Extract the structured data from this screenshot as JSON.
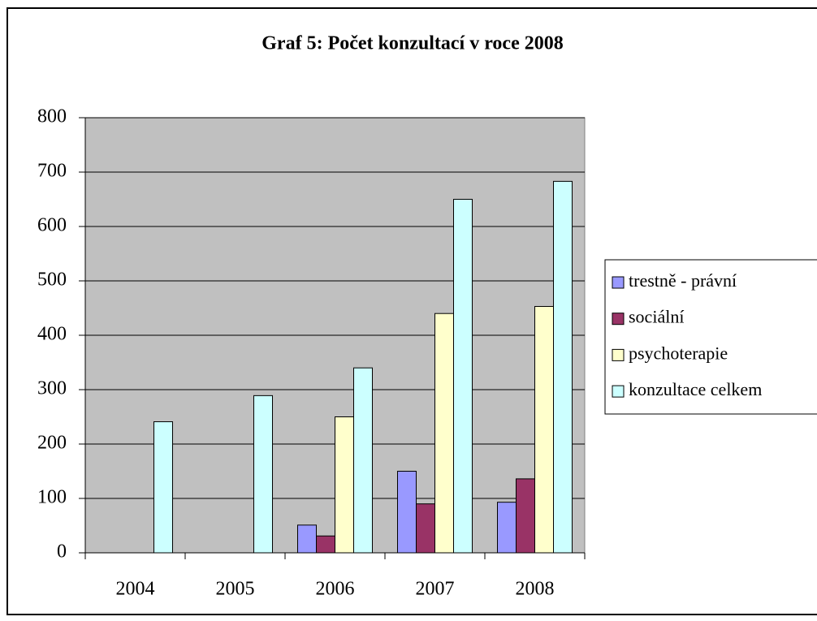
{
  "chart_data": {
    "type": "bar",
    "title": "Graf 5: Počet konzultací v roce 2008",
    "categories": [
      "2004",
      "2005",
      "2006",
      "2007",
      "2008"
    ],
    "series": [
      {
        "name": "trestně - právní",
        "color": "#9999ff",
        "values": [
          null,
          null,
          51,
          150,
          93
        ]
      },
      {
        "name": "sociální",
        "color": "#993366",
        "values": [
          null,
          null,
          31,
          90,
          136
        ]
      },
      {
        "name": "psychoterapie",
        "color": "#ffffcc",
        "values": [
          null,
          null,
          250,
          440,
          453
        ]
      },
      {
        "name": "konzultace celkem",
        "color": "#ccffff",
        "values": [
          241,
          289,
          340,
          650,
          683
        ]
      }
    ],
    "ylim": [
      0,
      800
    ],
    "yticks": [
      0,
      100,
      200,
      300,
      400,
      500,
      600,
      700,
      800
    ],
    "grid": true,
    "legend": "right",
    "plot_background": "#c0c0c0"
  }
}
